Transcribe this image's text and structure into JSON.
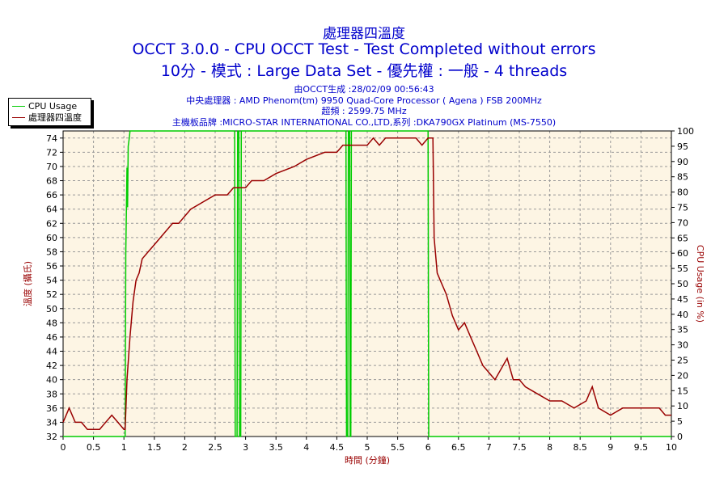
{
  "titles": {
    "line1": "處理器四溫度",
    "line2": "OCCT 3.0.0 - CPU OCCT Test - Test Completed without errors",
    "line3": "10分 - 模式 : Large Data Set - 優先權 : 一般 - 4 threads"
  },
  "subtitles": {
    "generated": "由OCCT生成 :28/02/09 00:56:43",
    "cpu": "中央處理器 : AMD Phenom(tm) 9950 Quad-Core Processor ( Agena ) FSB 200MHz",
    "clock": "超頻 : 2599.75 MHz",
    "board": "主機板品牌 :MICRO-STAR INTERNATIONAL CO.,LTD,系列 :DKA790GX Platinum (MS-7550)"
  },
  "legend": {
    "cpu_usage": "CPU Usage",
    "temperature": "處理器四溫度"
  },
  "colors": {
    "cpu_usage": "#00cc00",
    "temperature": "#990000",
    "plot_bg": "#fdf5e4",
    "grid": "#999999",
    "title": "#0000cc",
    "axis_label_left": "#990000",
    "axis_label_right": "#990000",
    "xlabel": "#990000"
  },
  "chart_data": {
    "type": "line",
    "xlabel": "時間 (分鐘)",
    "ylabel_left": "溫度 (攝氏)",
    "ylabel_right": "CPU Usage (in %)",
    "xlim": [
      0,
      10
    ],
    "ylim_left": [
      32,
      75
    ],
    "ylim_right": [
      0,
      100
    ],
    "xticks": [
      "0",
      "0.5",
      "1",
      "1.5",
      "2",
      "2.5",
      "3",
      "3.5",
      "4",
      "4.5",
      "5",
      "5.5",
      "6",
      "6.5",
      "7",
      "7.5",
      "8",
      "8.5",
      "9",
      "9.5",
      "10"
    ],
    "yticks_left": [
      "32",
      "34",
      "36",
      "38",
      "40",
      "42",
      "44",
      "46",
      "48",
      "50",
      "52",
      "54",
      "56",
      "58",
      "60",
      "62",
      "64",
      "66",
      "68",
      "70",
      "72",
      "74"
    ],
    "yticks_right": [
      "0",
      "5",
      "10",
      "15",
      "20",
      "25",
      "30",
      "35",
      "40",
      "45",
      "50",
      "55",
      "60",
      "65",
      "70",
      "75",
      "80",
      "85",
      "90",
      "95",
      "100"
    ],
    "grid": true,
    "legend_position": "top-left",
    "series": [
      {
        "name": "CPU Usage",
        "axis": "right",
        "points": [
          [
            0,
            0
          ],
          [
            1.0,
            0
          ],
          [
            1.02,
            0
          ],
          [
            1.03,
            60
          ],
          [
            1.05,
            88
          ],
          [
            1.06,
            75
          ],
          [
            1.07,
            95
          ],
          [
            1.09,
            98
          ],
          [
            1.1,
            100
          ],
          [
            2.82,
            100
          ],
          [
            2.83,
            0
          ],
          [
            2.86,
            0
          ],
          [
            2.87,
            100
          ],
          [
            2.89,
            100
          ],
          [
            2.9,
            0
          ],
          [
            2.92,
            0
          ],
          [
            2.93,
            100
          ],
          [
            4.65,
            100
          ],
          [
            4.66,
            0
          ],
          [
            4.68,
            0
          ],
          [
            4.69,
            100
          ],
          [
            4.71,
            100
          ],
          [
            4.72,
            0
          ],
          [
            4.73,
            0
          ],
          [
            4.74,
            100
          ],
          [
            6.0,
            100
          ],
          [
            6.01,
            0
          ],
          [
            6.05,
            0
          ],
          [
            10,
            0
          ]
        ]
      },
      {
        "name": "處理器四溫度",
        "points": [
          [
            0,
            34
          ],
          [
            0.05,
            35
          ],
          [
            0.1,
            36
          ],
          [
            0.2,
            34
          ],
          [
            0.3,
            34
          ],
          [
            0.4,
            33
          ],
          [
            0.5,
            33
          ],
          [
            0.6,
            33
          ],
          [
            0.8,
            35
          ],
          [
            0.9,
            34
          ],
          [
            1.0,
            33
          ],
          [
            1.02,
            33
          ],
          [
            1.05,
            40
          ],
          [
            1.1,
            46
          ],
          [
            1.15,
            51
          ],
          [
            1.2,
            54
          ],
          [
            1.25,
            55
          ],
          [
            1.3,
            57
          ],
          [
            1.4,
            58
          ],
          [
            1.5,
            59
          ],
          [
            1.6,
            60
          ],
          [
            1.7,
            61
          ],
          [
            1.8,
            62
          ],
          [
            1.9,
            62
          ],
          [
            2.0,
            63
          ],
          [
            2.1,
            64
          ],
          [
            2.3,
            65
          ],
          [
            2.5,
            66
          ],
          [
            2.7,
            66
          ],
          [
            2.8,
            67
          ],
          [
            3.0,
            67
          ],
          [
            3.1,
            68
          ],
          [
            3.3,
            68
          ],
          [
            3.5,
            69
          ],
          [
            3.8,
            70
          ],
          [
            4.0,
            71
          ],
          [
            4.3,
            72
          ],
          [
            4.5,
            72
          ],
          [
            4.6,
            73
          ],
          [
            4.9,
            73
          ],
          [
            5.0,
            73
          ],
          [
            5.1,
            74
          ],
          [
            5.2,
            73
          ],
          [
            5.3,
            74
          ],
          [
            5.6,
            74
          ],
          [
            5.8,
            74
          ],
          [
            5.9,
            73
          ],
          [
            6.0,
            74
          ],
          [
            6.08,
            74
          ],
          [
            6.1,
            60
          ],
          [
            6.15,
            55
          ],
          [
            6.2,
            54
          ],
          [
            6.3,
            52
          ],
          [
            6.4,
            49
          ],
          [
            6.5,
            47
          ],
          [
            6.6,
            48
          ],
          [
            6.7,
            46
          ],
          [
            6.8,
            44
          ],
          [
            6.9,
            42
          ],
          [
            7.0,
            41
          ],
          [
            7.1,
            40
          ],
          [
            7.3,
            43
          ],
          [
            7.4,
            40
          ],
          [
            7.5,
            40
          ],
          [
            7.6,
            39
          ],
          [
            7.8,
            38
          ],
          [
            8.0,
            37
          ],
          [
            8.2,
            37
          ],
          [
            8.4,
            36
          ],
          [
            8.6,
            37
          ],
          [
            8.7,
            39
          ],
          [
            8.8,
            36
          ],
          [
            9.0,
            35
          ],
          [
            9.2,
            36
          ],
          [
            9.4,
            36
          ],
          [
            9.6,
            36
          ],
          [
            9.8,
            36
          ],
          [
            9.9,
            35
          ],
          [
            10,
            35
          ]
        ]
      }
    ]
  }
}
